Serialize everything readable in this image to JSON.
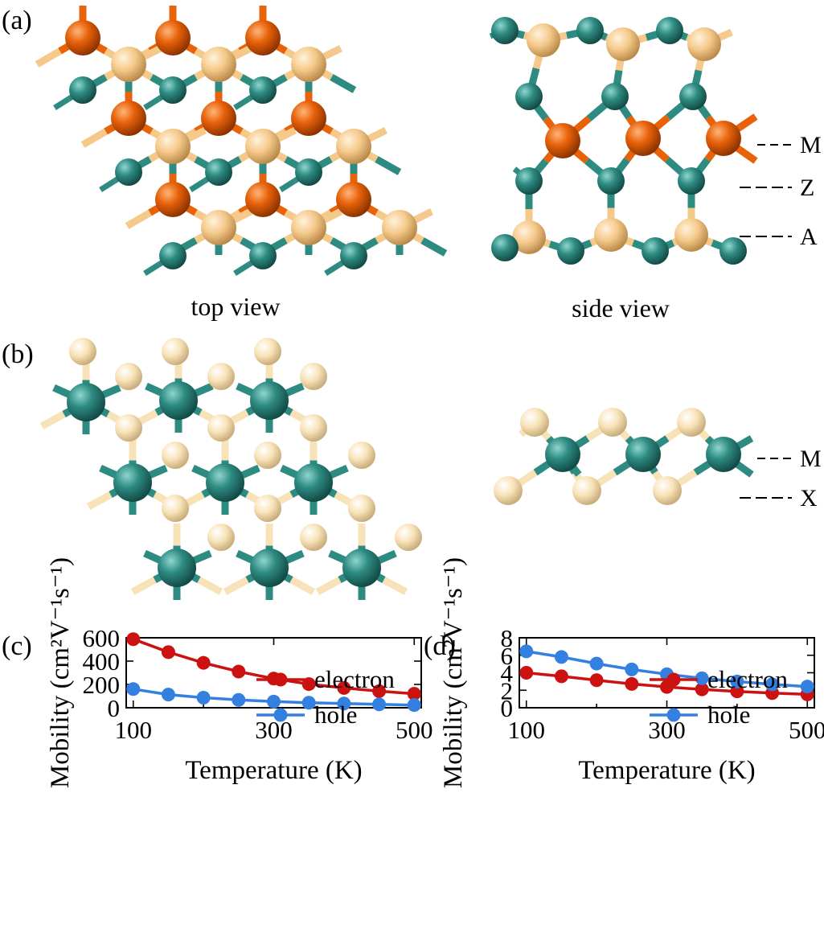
{
  "panels": {
    "a": {
      "tag": "(a)",
      "top_caption": "top view",
      "side_caption": "side view",
      "layers": [
        "M",
        "Z",
        "A"
      ]
    },
    "b": {
      "tag": "(b)",
      "layers": [
        "M",
        "X"
      ]
    },
    "c": {
      "tag": "(c)"
    },
    "d": {
      "tag": "(d)"
    }
  },
  "colors": {
    "teal": "#2E8B82",
    "orange": "#E8620A",
    "tan": "#F5C98A",
    "cream": "#F8E3B8",
    "electron": "#CC1111",
    "hole": "#3380E0"
  },
  "chart_data": [
    {
      "type": "line",
      "panel": "c",
      "xlabel": "Temperature (K)",
      "ylabel": "Mobility (cm²V⁻¹s⁻¹)",
      "xlim": [
        90,
        510
      ],
      "ylim": [
        0,
        600
      ],
      "xticks": [
        100,
        300,
        500
      ],
      "yticks": [
        0,
        200,
        400,
        600
      ],
      "legend_position": "top-right",
      "x": [
        100,
        150,
        200,
        250,
        300,
        350,
        400,
        450,
        500
      ],
      "series": [
        {
          "name": "electron",
          "values": [
            588,
            477,
            385,
            310,
            250,
            203,
            170,
            142,
            120
          ]
        },
        {
          "name": "hole",
          "values": [
            160,
            113,
            86,
            67,
            53,
            43,
            36,
            29,
            23
          ]
        }
      ]
    },
    {
      "type": "line",
      "panel": "d",
      "xlabel": "Temperature (K)",
      "ylabel": "Mobility (cm²V⁻¹s⁻¹)",
      "xlim": [
        90,
        510
      ],
      "ylim": [
        0,
        8
      ],
      "xticks": [
        100,
        300,
        500
      ],
      "yticks": [
        0,
        2,
        4,
        6,
        8
      ],
      "legend_position": "top-right",
      "x": [
        100,
        150,
        200,
        250,
        300,
        350,
        400,
        450,
        500
      ],
      "series": [
        {
          "name": "electron",
          "values": [
            4.0,
            3.6,
            3.15,
            2.72,
            2.38,
            2.1,
            1.87,
            1.68,
            1.53
          ]
        },
        {
          "name": "hole",
          "values": [
            6.45,
            5.8,
            5.05,
            4.38,
            3.83,
            3.37,
            3.0,
            2.68,
            2.42
          ]
        }
      ]
    }
  ]
}
